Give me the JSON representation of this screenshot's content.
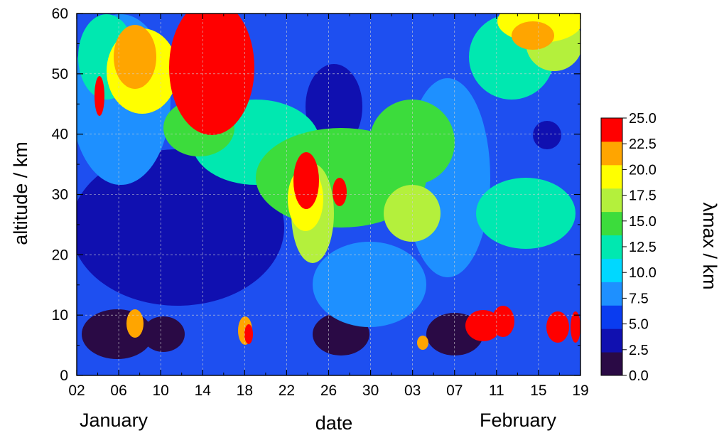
{
  "chart_data": {
    "type": "heatmap",
    "xlabel": "date",
    "ylabel": "altitude / km",
    "month_labels": [
      "January",
      "February"
    ],
    "x_ticks": [
      "02",
      "06",
      "10",
      "14",
      "18",
      "22",
      "26",
      "30",
      "03",
      "07",
      "11",
      "15",
      "19"
    ],
    "y_ticks": [
      0,
      10,
      20,
      30,
      40,
      50,
      60
    ],
    "ylim": [
      0,
      60
    ],
    "colorbar": {
      "label": "λmax / km",
      "ticks": [
        "0.0",
        "2.5",
        "5.0",
        "7.5",
        "10.0",
        "12.5",
        "15.0",
        "17.5",
        "20.0",
        "22.5",
        "25.0"
      ],
      "range": [
        0,
        25
      ],
      "colors": [
        "#2a0a45",
        "#1010b0",
        "#0a3cf0",
        "#1e90ff",
        "#00d8ff",
        "#00e8b0",
        "#3cdc3c",
        "#b4f03c",
        "#ffff00",
        "#ffa500",
        "#ff0000"
      ]
    },
    "grid": true
  }
}
